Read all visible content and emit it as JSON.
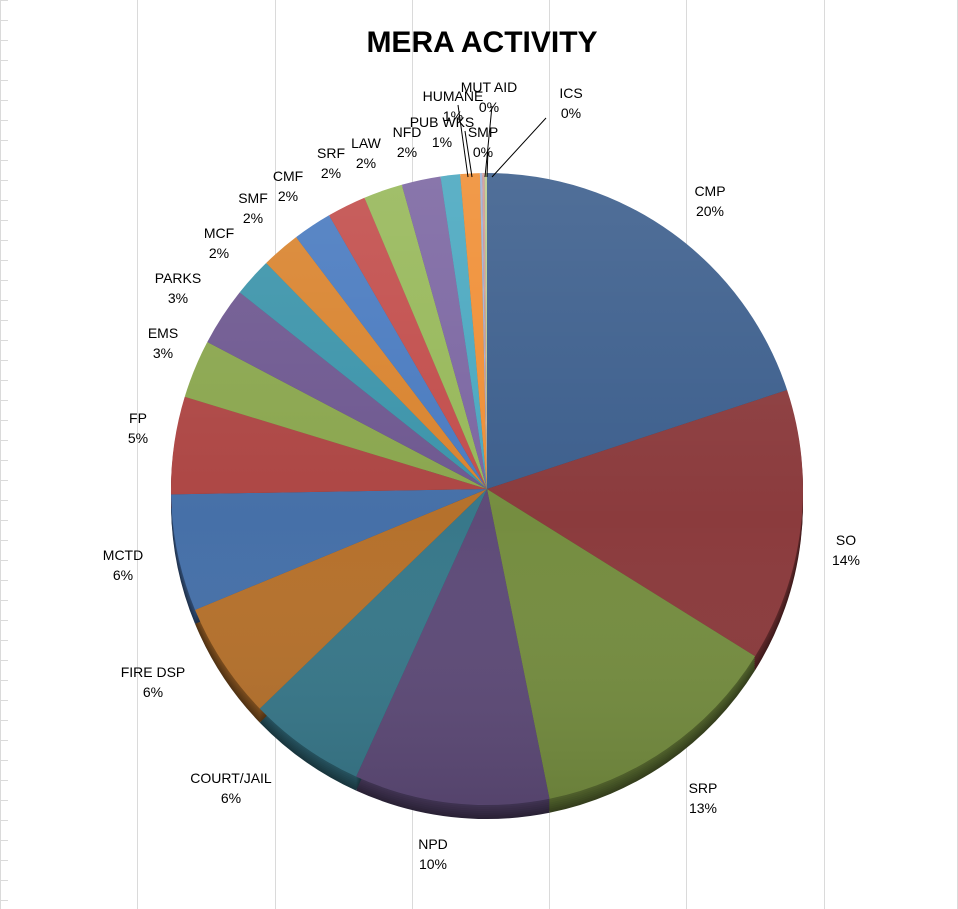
{
  "chart_data": {
    "type": "pie",
    "title": "MERA ACTIVITY",
    "slices": [
      {
        "label": "CMP",
        "value": 20,
        "display": "20%",
        "color": "#3D5F8D"
      },
      {
        "label": "SO",
        "value": 14,
        "display": "14%",
        "color": "#8B3B3D"
      },
      {
        "label": "SRP",
        "value": 13,
        "display": "13%",
        "color": "#758D40"
      },
      {
        "label": "NPD",
        "value": 10,
        "display": "10%",
        "color": "#5E4B78"
      },
      {
        "label": "COURT/JAIL",
        "value": 6,
        "display": "6%",
        "color": "#38788A"
      },
      {
        "label": "FIRE DSP",
        "value": 6,
        "display": "6%",
        "color": "#B5712C"
      },
      {
        "label": "MCTD",
        "value": 6,
        "display": "6%",
        "color": "#4670A8"
      },
      {
        "label": "FP",
        "value": 5,
        "display": "5%",
        "color": "#AD4644"
      },
      {
        "label": "EMS",
        "value": 3,
        "display": "3%",
        "color": "#8AA64E"
      },
      {
        "label": "PARKS",
        "value": 3,
        "display": "3%",
        "color": "#6E5890"
      },
      {
        "label": "MCF",
        "value": 2,
        "display": "2%",
        "color": "#3C94AA"
      },
      {
        "label": "SMF",
        "value": 2,
        "display": "2%",
        "color": "#D9842F"
      },
      {
        "label": "CMF",
        "value": 2,
        "display": "2%",
        "color": "#4A7BC0"
      },
      {
        "label": "SRF",
        "value": 2,
        "display": "2%",
        "color": "#C24E4C"
      },
      {
        "label": "LAW",
        "value": 2,
        "display": "2%",
        "color": "#97B85A"
      },
      {
        "label": "NFD",
        "value": 2,
        "display": "2%",
        "color": "#7C67A2"
      },
      {
        "label": "PUB WKS",
        "value": 1,
        "display": "1%",
        "color": "#4BA8C0"
      },
      {
        "label": "HUMANE",
        "value": 1,
        "display": "1%",
        "color": "#F08F36"
      },
      {
        "label": "MUT AID",
        "value": 0,
        "display": "0%",
        "color": "#9FB3D8"
      },
      {
        "label": "SMP",
        "value": 0,
        "display": "0%",
        "color": "#D49A98"
      },
      {
        "label": "ICS",
        "value": 0,
        "display": "0%",
        "color": "#B9CC90"
      }
    ]
  }
}
